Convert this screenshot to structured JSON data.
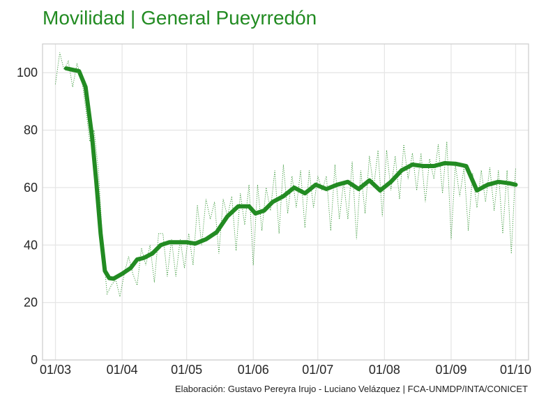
{
  "title": "Movilidad | General Pueyrredón",
  "caption": "Elaboración: Gustavo Pereyra Irujo - Luciano Velázquez | FCA-UNMDP/INTA/CONICET",
  "colors": {
    "line": "#228B22",
    "grid": "#e6e6e6",
    "frame": "#cccccc",
    "title": "#228B22"
  },
  "chart_data": {
    "type": "line",
    "title": "Movilidad | General Pueyrredón",
    "xlabel": "",
    "ylabel": "",
    "x_ticks": [
      "01/03",
      "01/04",
      "01/05",
      "01/06",
      "01/07",
      "01/08",
      "01/09",
      "01/10"
    ],
    "xlim": [
      "2020-02-24",
      "2020-10-07"
    ],
    "y_ticks": [
      0,
      20,
      40,
      60,
      80,
      100
    ],
    "ylim": [
      0,
      110
    ],
    "grid": true,
    "legend": "none",
    "series": [
      {
        "style": "thick-solid",
        "x": [
          "2020-03-06",
          "2020-03-09",
          "2020-03-12",
          "2020-03-15",
          "2020-03-18",
          "2020-03-20",
          "2020-03-22",
          "2020-03-24",
          "2020-03-26",
          "2020-03-28",
          "2020-04-01",
          "2020-04-05",
          "2020-04-08",
          "2020-04-11",
          "2020-04-15",
          "2020-04-19",
          "2020-04-23",
          "2020-04-27",
          "2020-05-01",
          "2020-05-05",
          "2020-05-10",
          "2020-05-15",
          "2020-05-20",
          "2020-05-25",
          "2020-05-30",
          "2020-06-02",
          "2020-06-06",
          "2020-06-10",
          "2020-06-15",
          "2020-06-20",
          "2020-06-25",
          "2020-06-30",
          "2020-07-05",
          "2020-07-10",
          "2020-07-15",
          "2020-07-20",
          "2020-07-25",
          "2020-07-30",
          "2020-08-04",
          "2020-08-09",
          "2020-08-14",
          "2020-08-19",
          "2020-08-24",
          "2020-08-29",
          "2020-09-03",
          "2020-09-08",
          "2020-09-13",
          "2020-09-18",
          "2020-09-23",
          "2020-09-28",
          "2020-10-01"
        ],
        "y": [
          101.5,
          101,
          100.5,
          95,
          78,
          62,
          44,
          31,
          28.5,
          28.3,
          30,
          32,
          35,
          35.5,
          37,
          40,
          41,
          41,
          41,
          40.5,
          42,
          44.5,
          50,
          53.5,
          53.5,
          51,
          52,
          55,
          57,
          60,
          58,
          61,
          59.5,
          61,
          62,
          59.5,
          62.5,
          59,
          62,
          66,
          68,
          67.5,
          67.5,
          68.5,
          68.3,
          67.5,
          59,
          61,
          62,
          61.5,
          61
        ]
      },
      {
        "style": "dotted-daily",
        "x": [
          "2020-03-01",
          "2020-03-03",
          "2020-03-05",
          "2020-03-07",
          "2020-03-09",
          "2020-03-11",
          "2020-03-13",
          "2020-03-15",
          "2020-03-17",
          "2020-03-19",
          "2020-03-21",
          "2020-03-23",
          "2020-03-25",
          "2020-03-27",
          "2020-03-29",
          "2020-03-31",
          "2020-04-02",
          "2020-04-04",
          "2020-04-06",
          "2020-04-08",
          "2020-04-10",
          "2020-04-12",
          "2020-04-14",
          "2020-04-16",
          "2020-04-18",
          "2020-04-20",
          "2020-04-22",
          "2020-04-24",
          "2020-04-26",
          "2020-04-28",
          "2020-04-30",
          "2020-05-02",
          "2020-05-04",
          "2020-05-06",
          "2020-05-08",
          "2020-05-10",
          "2020-05-12",
          "2020-05-14",
          "2020-05-16",
          "2020-05-18",
          "2020-05-20",
          "2020-05-22",
          "2020-05-24",
          "2020-05-26",
          "2020-05-28",
          "2020-05-30",
          "2020-06-01",
          "2020-06-03",
          "2020-06-05",
          "2020-06-07",
          "2020-06-09",
          "2020-06-11",
          "2020-06-13",
          "2020-06-15",
          "2020-06-17",
          "2020-06-19",
          "2020-06-21",
          "2020-06-23",
          "2020-06-25",
          "2020-06-27",
          "2020-06-29",
          "2020-07-01",
          "2020-07-03",
          "2020-07-05",
          "2020-07-07",
          "2020-07-09",
          "2020-07-11",
          "2020-07-13",
          "2020-07-15",
          "2020-07-17",
          "2020-07-19",
          "2020-07-21",
          "2020-07-23",
          "2020-07-25",
          "2020-07-27",
          "2020-07-29",
          "2020-07-31",
          "2020-08-02",
          "2020-08-04",
          "2020-08-06",
          "2020-08-08",
          "2020-08-10",
          "2020-08-12",
          "2020-08-14",
          "2020-08-16",
          "2020-08-18",
          "2020-08-20",
          "2020-08-22",
          "2020-08-24",
          "2020-08-26",
          "2020-08-28",
          "2020-08-30",
          "2020-09-01",
          "2020-09-03",
          "2020-09-05",
          "2020-09-07",
          "2020-09-09",
          "2020-09-11",
          "2020-09-13",
          "2020-09-15",
          "2020-09-17",
          "2020-09-19",
          "2020-09-21",
          "2020-09-23",
          "2020-09-25",
          "2020-09-27",
          "2020-09-29",
          "2020-10-01"
        ],
        "y": [
          96,
          107,
          101,
          104,
          95,
          103,
          99,
          88,
          76,
          80,
          66,
          40,
          23,
          26,
          28,
          22,
          30,
          36,
          30,
          26,
          39,
          33,
          40,
          27,
          44,
          44,
          29,
          42,
          29,
          42,
          32,
          44,
          33,
          54,
          40,
          56,
          49,
          55,
          37,
          56,
          50,
          57,
          38,
          58,
          47,
          61,
          33,
          61,
          45,
          60,
          52,
          66,
          44,
          68,
          51,
          64,
          53,
          66,
          46,
          66,
          53,
          64,
          59,
          64,
          45,
          68,
          49,
          62,
          49,
          69,
          42,
          66,
          51,
          71,
          60,
          73,
          50,
          73,
          59,
          71,
          56,
          75,
          63,
          72,
          59,
          72,
          55,
          70,
          63,
          75,
          58,
          76,
          42,
          68,
          57,
          67,
          45,
          65,
          53,
          66,
          55,
          67,
          52,
          66,
          44,
          66,
          37,
          67
        ]
      }
    ]
  }
}
